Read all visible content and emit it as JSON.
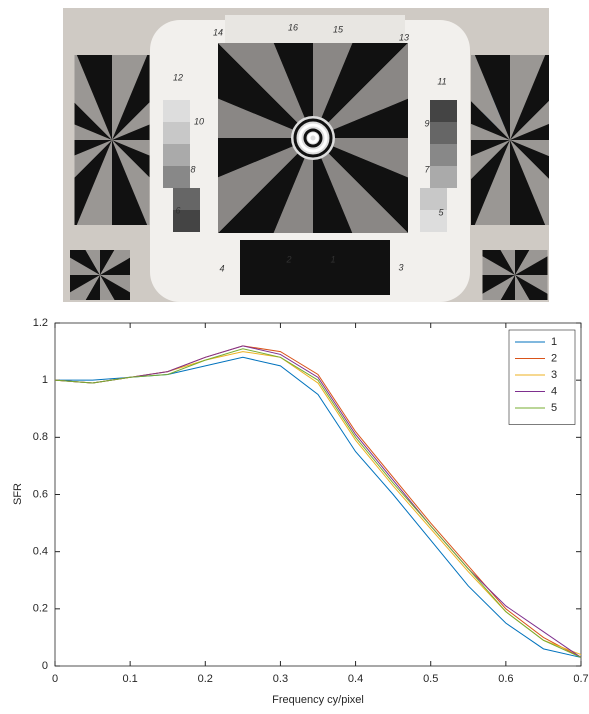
{
  "photo": {
    "labels": [
      "16",
      "15",
      "14",
      "13",
      "12",
      "11",
      "10",
      "9",
      "8",
      "7",
      "6",
      "5",
      "4",
      "3",
      "2",
      "1"
    ]
  },
  "chart_data": {
    "type": "line",
    "x_label": "Frequency cy/pixel",
    "y_label": "SFR",
    "x": [
      0,
      0.05,
      0.1,
      0.15,
      0.2,
      0.25,
      0.3,
      0.35,
      0.4,
      0.45,
      0.5,
      0.55,
      0.6,
      0.65,
      0.7
    ],
    "series": [
      {
        "name": "1",
        "color": "#0072bd",
        "values": [
          1,
          1.0,
          1.01,
          1.02,
          1.05,
          1.08,
          1.05,
          0.95,
          0.75,
          0.6,
          0.44,
          0.28,
          0.15,
          0.06,
          0.03
        ]
      },
      {
        "name": "2",
        "color": "#d95319",
        "values": [
          1,
          0.99,
          1.01,
          1.03,
          1.08,
          1.12,
          1.1,
          1.02,
          0.82,
          0.66,
          0.5,
          0.35,
          0.2,
          0.1,
          0.03
        ]
      },
      {
        "name": "3",
        "color": "#edb120",
        "values": [
          1,
          0.99,
          1.01,
          1.03,
          1.07,
          1.1,
          1.08,
          0.99,
          0.79,
          0.63,
          0.48,
          0.33,
          0.19,
          0.09,
          0.04
        ]
      },
      {
        "name": "4",
        "color": "#7e2f8e",
        "values": [
          1,
          0.99,
          1.01,
          1.03,
          1.08,
          1.12,
          1.09,
          1.01,
          0.81,
          0.65,
          0.49,
          0.34,
          0.21,
          0.12,
          0.03
        ]
      },
      {
        "name": "5",
        "color": "#77ac30",
        "values": [
          1,
          0.99,
          1.01,
          1.02,
          1.07,
          1.11,
          1.08,
          1.0,
          0.8,
          0.64,
          0.49,
          0.34,
          0.19,
          0.09,
          0.03
        ]
      }
    ],
    "xlim": [
      0,
      0.7
    ],
    "xticks": [
      0,
      0.1,
      0.2,
      0.3,
      0.4,
      0.5,
      0.6,
      0.7
    ],
    "ylim": [
      0,
      1.2
    ],
    "yticks": [
      0,
      0.2,
      0.4,
      0.6,
      0.8,
      1,
      1.2
    ],
    "grid": false,
    "legend": "top-right"
  }
}
